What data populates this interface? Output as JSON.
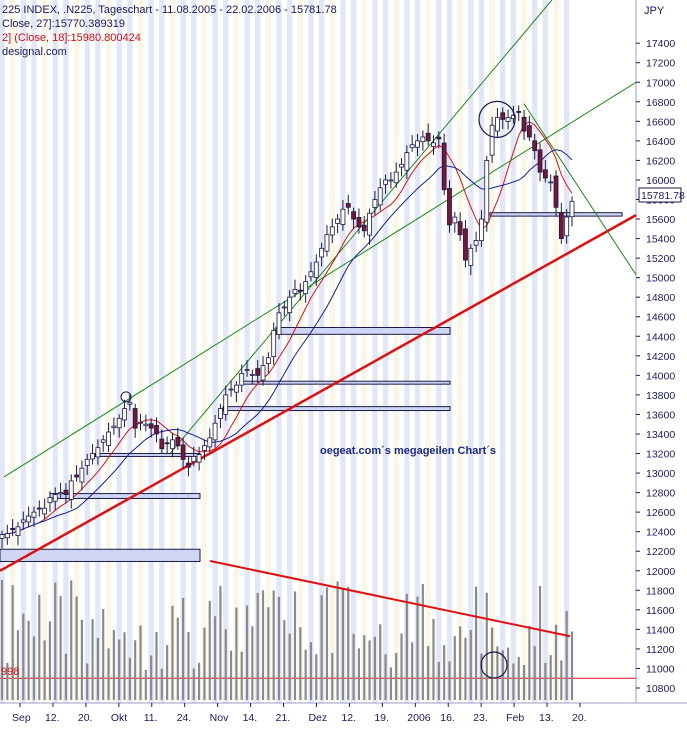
{
  "header": {
    "line1": "225 INDEX, .N225, Tageschart - 11.08.2005 - 22.02.2006 - 15781.78",
    "line2": "Close, 27]:15770.389319",
    "line3": "2] (Close, 18]:15980.800424",
    "line4": "designal.com"
  },
  "annotation": "oegeat.com´s megageilen Chart´s",
  "volume_label": "998",
  "colors": {
    "background": "#ffffff",
    "stripe": "#e3e6f7",
    "stripe_alt": "#f7f7e4",
    "candle_up": "#ffffff",
    "candle_down": "#7a1533",
    "candle_outline": "#1a1a4a",
    "ma_fast": "#e01010",
    "ma_slow": "#1020a0",
    "trend_green": "#1a8a1a",
    "trend_red": "#e01010",
    "zone_fill": "#cfd6f3",
    "zone_stroke": "#1a1a4a",
    "volume": "#8a8a8a",
    "axis_text": "#1a1a60"
  },
  "chart_data": {
    "type": "candlestick",
    "title": "225 INDEX, .N225, Tageschart - 11.08.2005 - 22.02.2006 - 15781.78",
    "currency": "JPY",
    "last_value": "15781.78",
    "ylim": [
      10700,
      17750
    ],
    "y_ticks": [
      10800,
      11000,
      11200,
      11400,
      11600,
      11800,
      12000,
      12200,
      12400,
      12600,
      12800,
      13000,
      13200,
      13400,
      13600,
      13800,
      14000,
      14200,
      14400,
      14600,
      14800,
      15000,
      15200,
      15400,
      15600,
      15800,
      16000,
      16200,
      16400,
      16600,
      16800,
      17000,
      17200,
      17400
    ],
    "x_tick_labels": [
      "Sep",
      "12.",
      "20.",
      "Okt",
      "11.",
      "24.",
      "Nov",
      "14.",
      "21.",
      "Dez",
      "12.",
      "19.",
      "2006",
      "16.",
      "23.",
      "Feb",
      "13.",
      "20."
    ],
    "closes": [
      12370,
      12380,
      12420,
      12450,
      12520,
      12560,
      12600,
      12640,
      12640,
      12750,
      12780,
      12800,
      12780,
      12920,
      12960,
      13050,
      13140,
      13200,
      13260,
      13340,
      13420,
      13480,
      13560,
      13660,
      13720,
      13460,
      13520,
      13500,
      13460,
      13400,
      13250,
      13300,
      13340,
      13280,
      13140,
      13060,
      13170,
      13190,
      13280,
      13360,
      13510,
      13660,
      13800,
      13860,
      13900,
      14020,
      14060,
      14010,
      14000,
      14100,
      14180,
      14460,
      14640,
      14700,
      14800,
      14880,
      14860,
      14960,
      15060,
      15160,
      15300,
      15440,
      15520,
      15600,
      15700,
      15720,
      15600,
      15520,
      15480,
      15660,
      15800,
      15920,
      16000,
      16000,
      16080,
      16160,
      16280,
      16360,
      16400,
      16440,
      16400,
      16380,
      16420,
      15900,
      15540,
      15620,
      15440,
      15180,
      15300,
      15380,
      15600,
      16200,
      16560,
      16640,
      16620,
      16640,
      16660,
      16700,
      16500,
      16440,
      16300,
      16080,
      16020,
      15980,
      15720,
      15400,
      15620,
      15781.78
    ],
    "ma_fast_last": "15980.800424",
    "ma_slow_last": "15770.389319",
    "volume_reference": 10900
  }
}
